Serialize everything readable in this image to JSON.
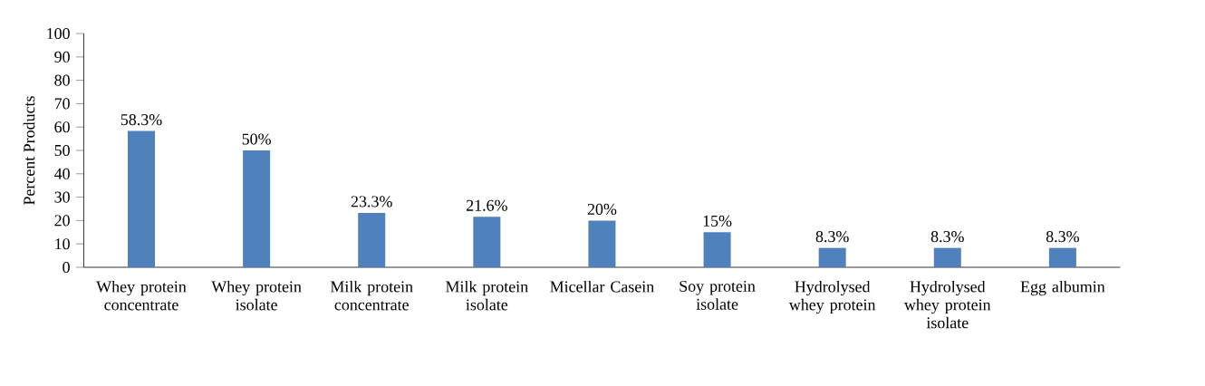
{
  "chart_data": {
    "type": "bar",
    "ylabel": "Percent Products",
    "categories": [
      "Whey protein concentrate",
      "Whey protein isolate",
      "Milk protein concentrate",
      "Milk protein isolate",
      "Micellar Casein",
      "Soy protein isolate",
      "Hydrolysed whey protein",
      "Hydrolysed whey protein isolate",
      "Egg albumin"
    ],
    "values": [
      58.3,
      50,
      23.3,
      21.6,
      20,
      15,
      8.3,
      8.3,
      8.3
    ],
    "value_labels": [
      "58.3%",
      "50%",
      "23.3%",
      "21.6%",
      "20%",
      "15%",
      "8.3%",
      "8.3%",
      "8.3%"
    ],
    "color": "#4f81bd",
    "ylim": [
      0,
      100
    ],
    "yticks": [
      0,
      10,
      20,
      30,
      40,
      50,
      60,
      70,
      80,
      90,
      100
    ],
    "grid": false
  }
}
